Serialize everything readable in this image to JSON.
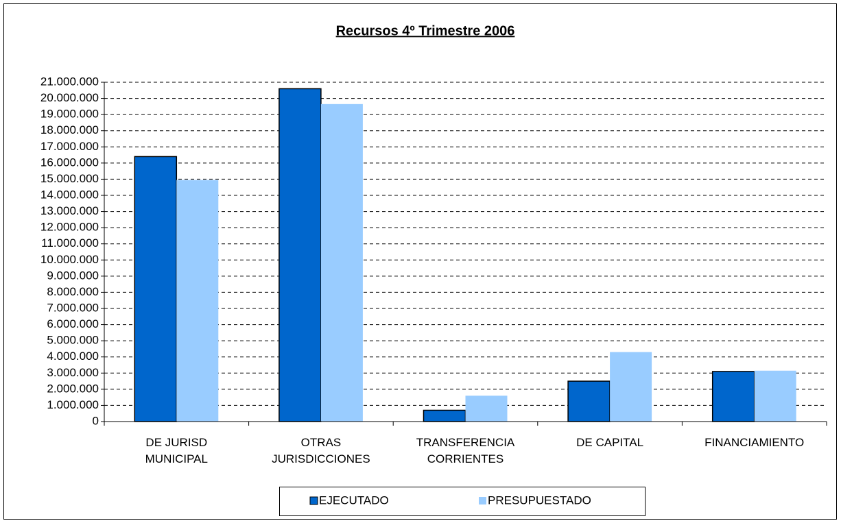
{
  "chart_data": {
    "type": "bar",
    "title": "Recursos 4º Trimestre 2006",
    "categories": [
      "DE JURISD\nMUNICIPAL",
      "OTRAS\nJURISDICCIONES",
      "TRANSFERENCIA\nCORRIENTES",
      "DE CAPITAL",
      "FINANCIAMIENTO"
    ],
    "series": [
      {
        "name": "EJECUTADO",
        "color": "#0066cc",
        "values": [
          16400000,
          20600000,
          700000,
          2500000,
          3100000
        ]
      },
      {
        "name": "PRESUPUESTADO",
        "color": "#99ccff",
        "values": [
          14950000,
          19650000,
          1600000,
          4300000,
          3150000
        ]
      }
    ],
    "ylim": [
      0,
      21000000
    ],
    "yticks": [
      0,
      {
        "value": 1000000,
        "label": "1.000.000"
      },
      {
        "value": 2000000,
        "label": "2.000.000"
      },
      {
        "value": 3000000,
        "label": "3.000.000"
      },
      {
        "value": 4000000,
        "label": "4.000.000"
      },
      {
        "value": 5000000,
        "label": "5.000.000"
      },
      {
        "value": 6000000,
        "label": "6.000.000"
      },
      {
        "value": 7000000,
        "label": "7.000.000"
      },
      {
        "value": 8000000,
        "label": "8.000.000"
      },
      {
        "value": 9000000,
        "label": "9.000.000"
      },
      {
        "value": 10000000,
        "label": "10.000.000"
      },
      {
        "value": 11000000,
        "label": "11.000.000"
      },
      {
        "value": 12000000,
        "label": "12.000.000"
      },
      {
        "value": 13000000,
        "label": "13.000.000"
      },
      {
        "value": 14000000,
        "label": "14.000.000"
      },
      {
        "value": 15000000,
        "label": "15.000.000"
      },
      {
        "value": 16000000,
        "label": "16.000.000"
      },
      {
        "value": 17000000,
        "label": "17.000.000"
      },
      {
        "value": 18000000,
        "label": "18.000.000"
      },
      {
        "value": 19000000,
        "label": "19.000.000"
      },
      {
        "value": 20000000,
        "label": "20.000.000"
      },
      {
        "value": 21000000,
        "label": "21.000.000"
      }
    ],
    "grid": true,
    "legend": "bottom"
  }
}
